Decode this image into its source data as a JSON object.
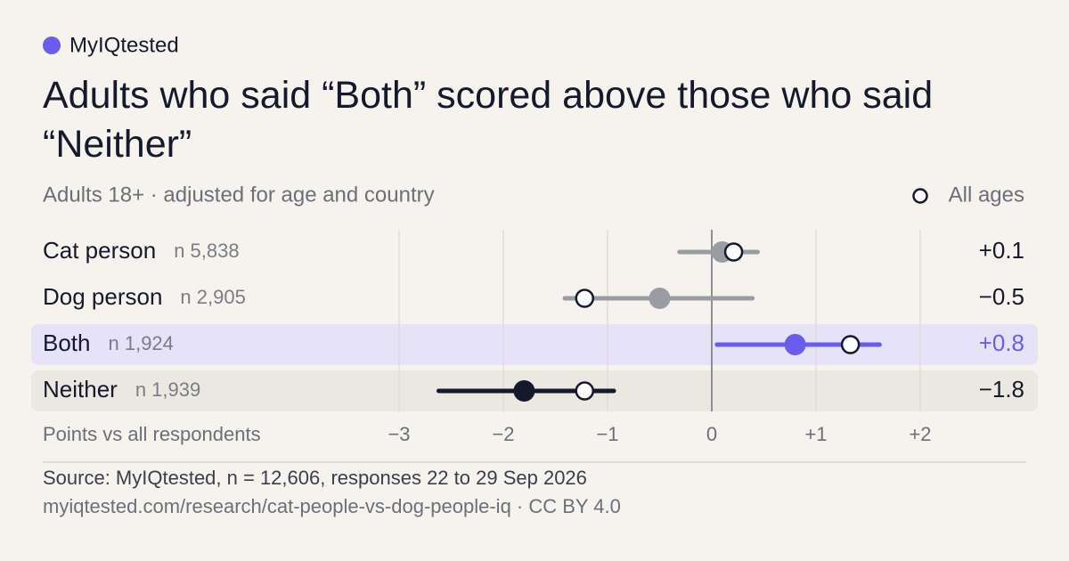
{
  "brand": "MyIQtested",
  "chart_data": {
    "type": "dotplot",
    "title": "Adults who said “Both” scored above those who said “Neither”",
    "subtitle": "Adults 18+ · adjusted for age and country",
    "legend": "All ages",
    "xlabel": "Points vs all respondents",
    "xlim": [
      -3,
      2
    ],
    "xticks": [
      {
        "value": -3,
        "label": "−3"
      },
      {
        "value": -2,
        "label": "−2"
      },
      {
        "value": -1,
        "label": "−1"
      },
      0,
      {
        "value": 1,
        "label": "+1"
      },
      {
        "value": 2,
        "label": "+2"
      }
    ],
    "grid": true,
    "rows": [
      {
        "label": "Cat person",
        "n": "n 5,838",
        "value": 0.1,
        "value_label": "+0.1",
        "all_ages": 0.21,
        "low": -0.31,
        "high": 0.44,
        "color": "#9a9ca3"
      },
      {
        "label": "Dog person",
        "n": "n 2,905",
        "value": -0.5,
        "value_label": "−0.5",
        "all_ages": -1.22,
        "low": -1.41,
        "high": 0.39,
        "color": "#9a9ca3"
      },
      {
        "label": "Both",
        "n": "n 1,924",
        "value": 0.8,
        "value_label": "+0.8",
        "all_ages": 1.33,
        "low": 0.05,
        "high": 1.61,
        "color": "#6b5cf0"
      },
      {
        "label": "Neither",
        "n": "n 1,939",
        "value": -1.8,
        "value_label": "−1.8",
        "all_ages": -1.22,
        "low": -2.62,
        "high": -0.94,
        "color": "#141a2b"
      }
    ]
  },
  "source": "Source: MyIQtested, n = 12,606, responses 22 to 29 Sep 2026",
  "url": "myiqtested.com/research/cat-people-vs-dog-people-iq · CC BY 4.0"
}
